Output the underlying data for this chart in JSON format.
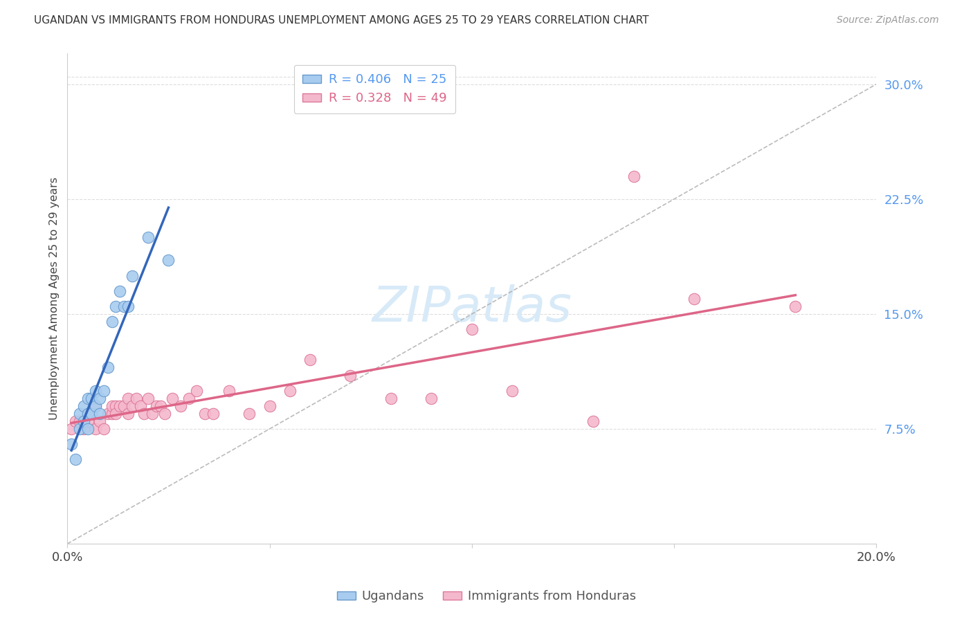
{
  "title": "UGANDAN VS IMMIGRANTS FROM HONDURAS UNEMPLOYMENT AMONG AGES 25 TO 29 YEARS CORRELATION CHART",
  "source": "Source: ZipAtlas.com",
  "ylabel": "Unemployment Among Ages 25 to 29 years",
  "xlim": [
    0.0,
    0.2
  ],
  "ylim": [
    0.0,
    0.32
  ],
  "yticks": [
    0.075,
    0.15,
    0.225,
    0.3
  ],
  "ytick_labels": [
    "7.5%",
    "15.0%",
    "22.5%",
    "30.0%"
  ],
  "xticks": [
    0.0,
    0.05,
    0.1,
    0.15,
    0.2
  ],
  "xtick_labels": [
    "0.0%",
    "",
    "",
    "",
    "20.0%"
  ],
  "ugandan_R": 0.406,
  "ugandan_N": 25,
  "honduras_R": 0.328,
  "honduras_N": 49,
  "ugandan_color": "#A8CCEF",
  "honduras_color": "#F4B8CC",
  "ugandan_edge_color": "#6699CC",
  "honduras_edge_color": "#DD7799",
  "ugandan_line_color": "#3366BB",
  "honduras_line_color": "#DD6688",
  "diagonal_color": "#AAAAAA",
  "background_color": "#FFFFFF",
  "ugandan_x": [
    0.001,
    0.002,
    0.003,
    0.003,
    0.004,
    0.004,
    0.005,
    0.005,
    0.005,
    0.006,
    0.006,
    0.007,
    0.007,
    0.008,
    0.008,
    0.009,
    0.01,
    0.011,
    0.012,
    0.013,
    0.014,
    0.015,
    0.016,
    0.02,
    0.025
  ],
  "ugandan_y": [
    0.065,
    0.055,
    0.075,
    0.085,
    0.08,
    0.09,
    0.075,
    0.085,
    0.095,
    0.085,
    0.095,
    0.09,
    0.1,
    0.085,
    0.095,
    0.1,
    0.115,
    0.145,
    0.155,
    0.165,
    0.155,
    0.155,
    0.175,
    0.2,
    0.185
  ],
  "honduras_x": [
    0.001,
    0.002,
    0.003,
    0.004,
    0.005,
    0.005,
    0.006,
    0.007,
    0.007,
    0.008,
    0.009,
    0.01,
    0.011,
    0.011,
    0.012,
    0.012,
    0.013,
    0.014,
    0.015,
    0.015,
    0.016,
    0.017,
    0.018,
    0.019,
    0.02,
    0.021,
    0.022,
    0.023,
    0.024,
    0.026,
    0.028,
    0.03,
    0.032,
    0.034,
    0.036,
    0.04,
    0.045,
    0.05,
    0.055,
    0.06,
    0.07,
    0.08,
    0.09,
    0.1,
    0.11,
    0.13,
    0.14,
    0.155,
    0.18
  ],
  "honduras_y": [
    0.075,
    0.08,
    0.08,
    0.075,
    0.08,
    0.085,
    0.085,
    0.075,
    0.09,
    0.08,
    0.075,
    0.085,
    0.085,
    0.09,
    0.09,
    0.085,
    0.09,
    0.09,
    0.085,
    0.095,
    0.09,
    0.095,
    0.09,
    0.085,
    0.095,
    0.085,
    0.09,
    0.09,
    0.085,
    0.095,
    0.09,
    0.095,
    0.1,
    0.085,
    0.085,
    0.1,
    0.085,
    0.09,
    0.1,
    0.12,
    0.11,
    0.095,
    0.095,
    0.14,
    0.1,
    0.08,
    0.24,
    0.16,
    0.155
  ],
  "watermark_text": "ZIPatlas",
  "watermark_color": "#D8EAF8",
  "grid_color": "#DDDDDD",
  "spine_color": "#CCCCCC"
}
